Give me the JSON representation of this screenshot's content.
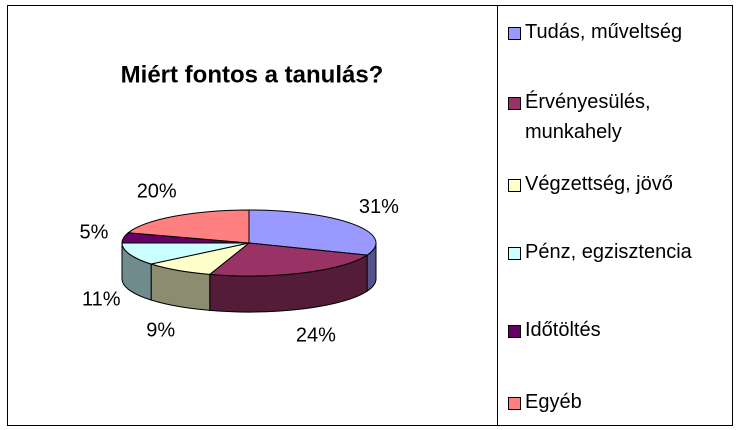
{
  "chart_data": {
    "type": "pie3d",
    "title": "Miért fontos a tanulás?",
    "categories": [
      "Tudás, műveltség",
      "Érvényesülés, munkahely",
      "Végzettség, jövő",
      "Pénz, egzisztencia",
      "Időtöltés",
      "Egyéb"
    ],
    "values": [
      31,
      24,
      9,
      11,
      5,
      20
    ],
    "value_labels": [
      "31%",
      "24%",
      "9%",
      "11%",
      "5%",
      "20%"
    ],
    "colors": [
      "#9999ff",
      "#993366",
      "#ffffcc",
      "#ccffff",
      "#660066",
      "#ff8080"
    ],
    "legend": "right"
  }
}
